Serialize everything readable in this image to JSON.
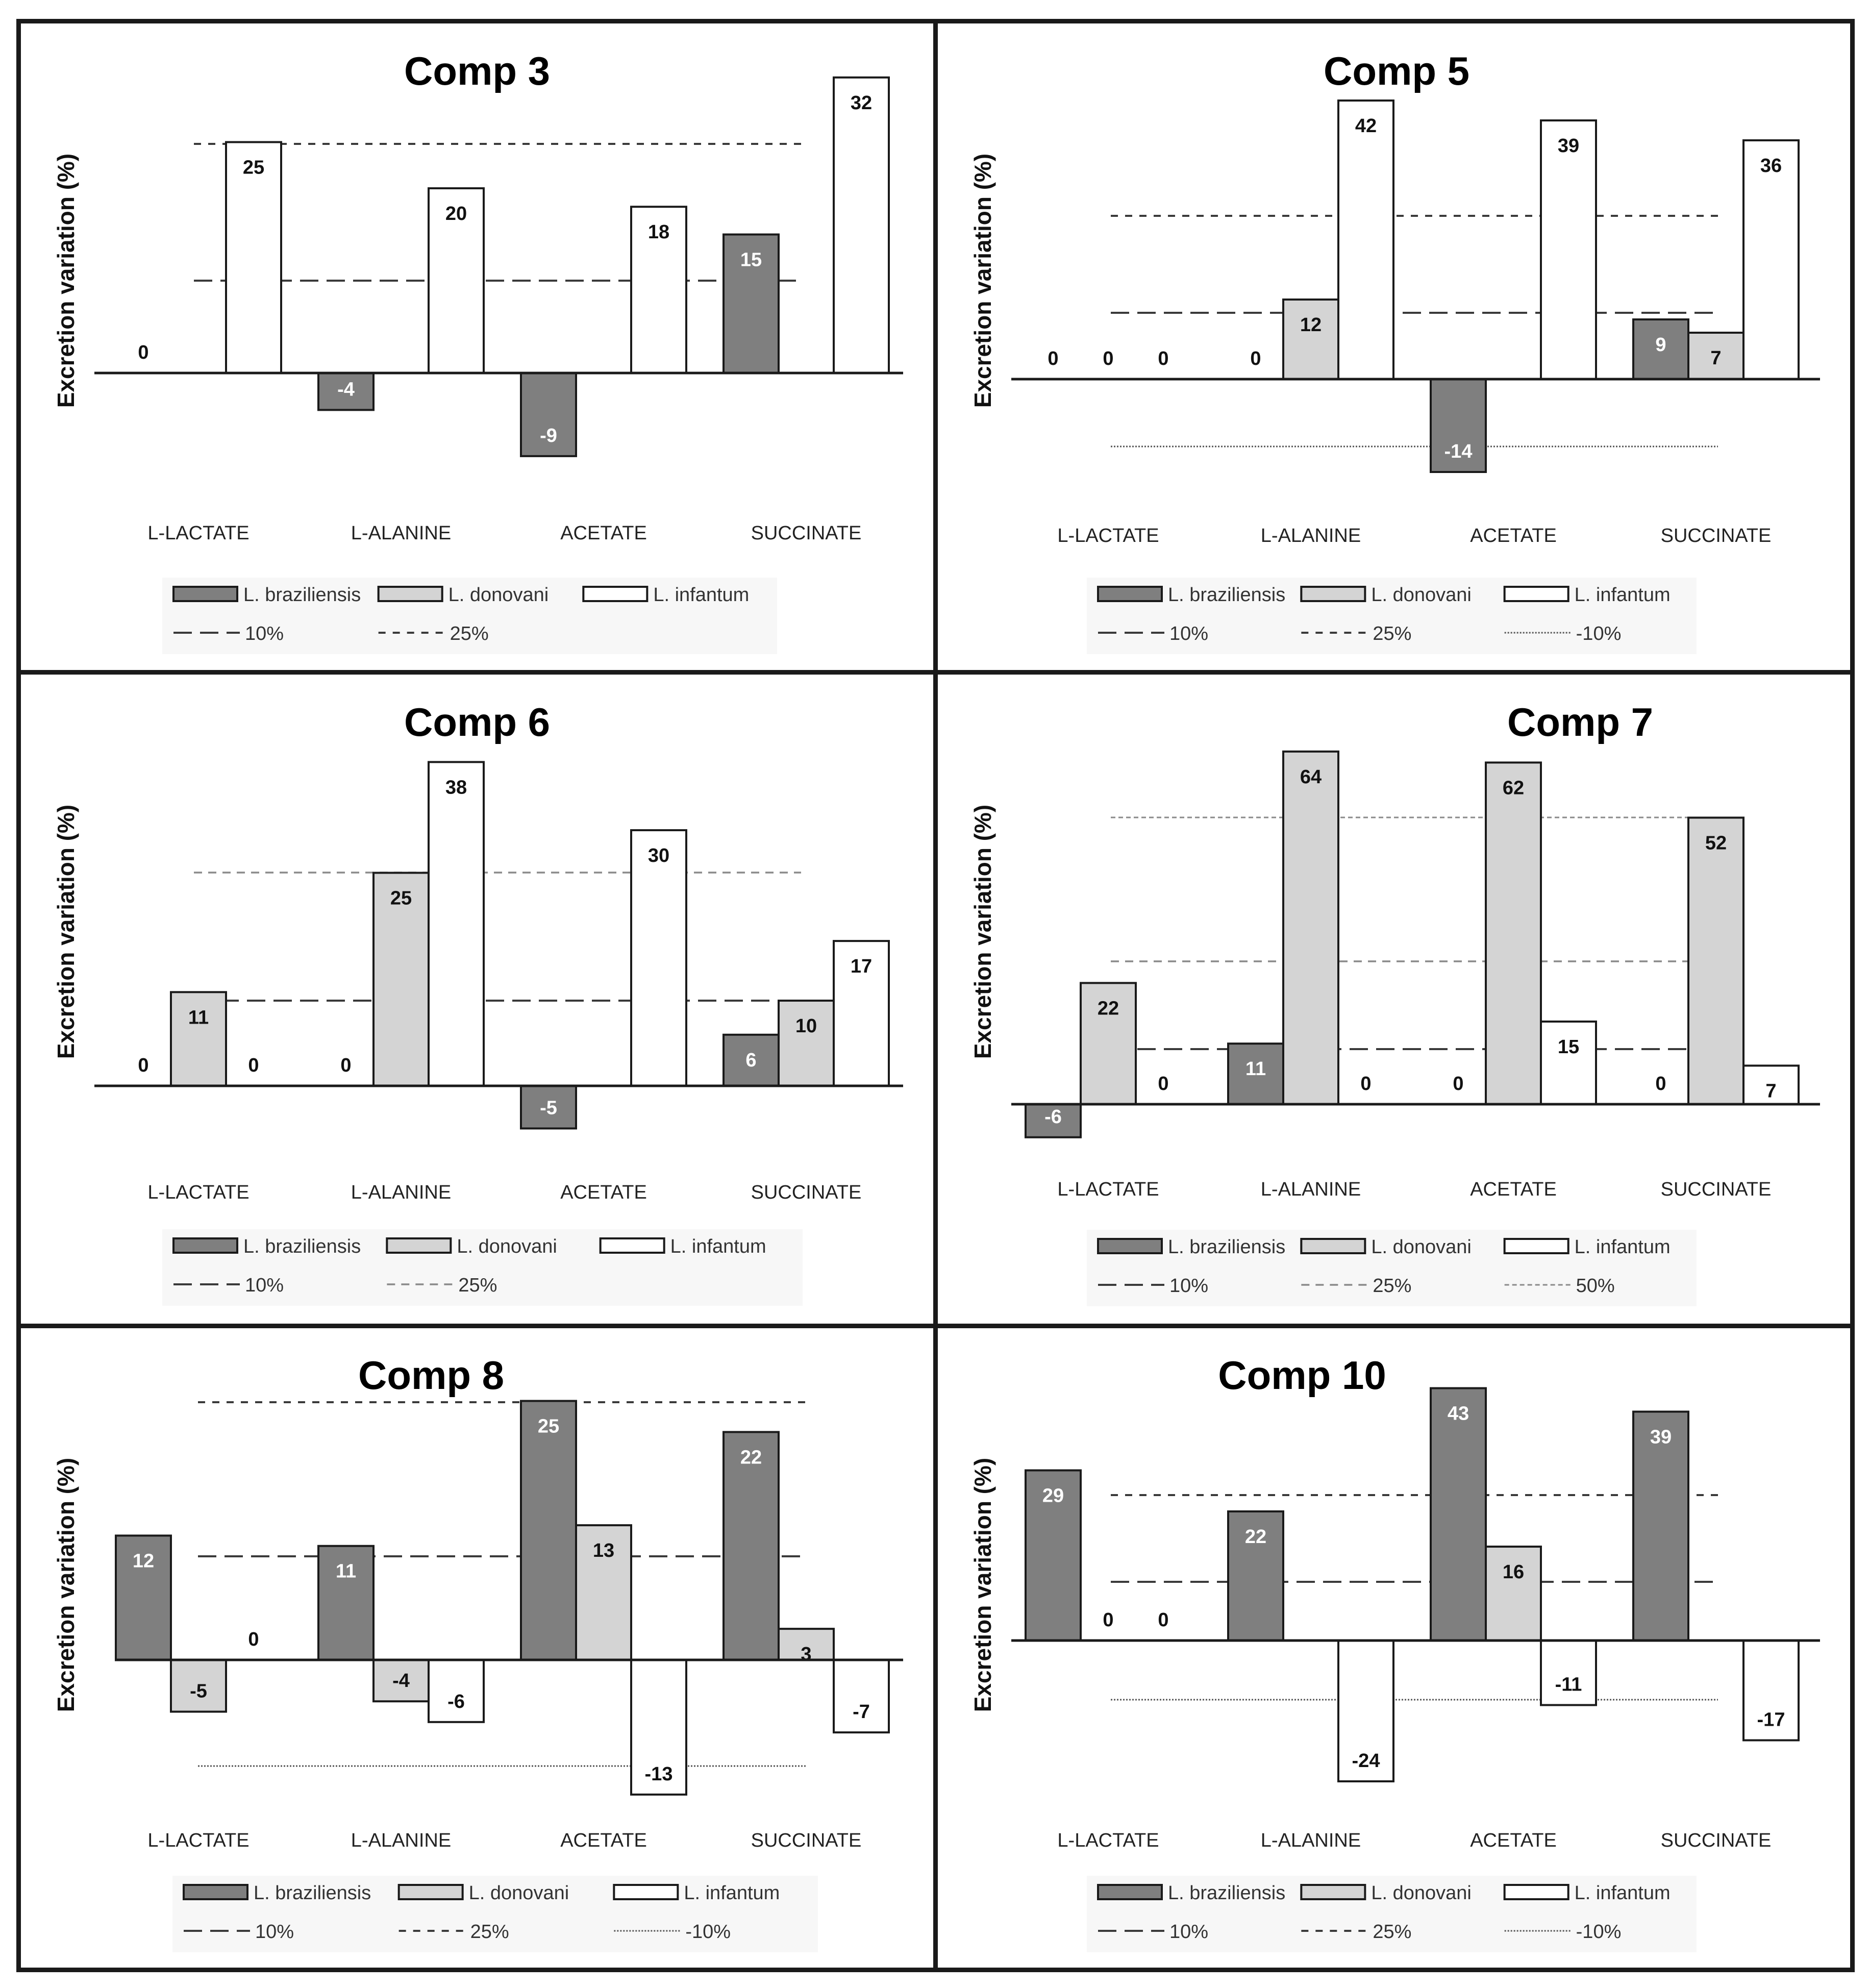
{
  "chart_data": [
    {
      "type": "bar",
      "title": "Comp 3",
      "ylabel": "Excretion variation (%)",
      "xlabel": "",
      "categories": [
        "L-LACTATE",
        "L-ALANINE",
        "ACETATE",
        "SUCCINATE"
      ],
      "series": [
        {
          "name": "L. braziliensis",
          "values": [
            0,
            -4,
            -9,
            15
          ]
        },
        {
          "name": "L. donovani",
          "values": [
            null,
            null,
            null,
            null
          ]
        },
        {
          "name": "L. infantum",
          "values": [
            25,
            20,
            18,
            32
          ]
        }
      ],
      "reference_lines": [
        {
          "label": "10%",
          "value": 10,
          "style": "long-dash"
        },
        {
          "label": "25%",
          "value": 25,
          "style": "short-dash"
        }
      ],
      "ylim": [
        -12,
        35
      ]
    },
    {
      "type": "bar",
      "title": "Comp 5",
      "ylabel": "Excretion variation (%)",
      "xlabel": "",
      "categories": [
        "L-LACTATE",
        "L-ALANINE",
        "ACETATE",
        "SUCCINATE"
      ],
      "series": [
        {
          "name": "L. braziliensis",
          "values": [
            0,
            0,
            -14,
            9
          ]
        },
        {
          "name": "L. donovani",
          "values": [
            0,
            12,
            null,
            7
          ]
        },
        {
          "name": "L. infantum",
          "values": [
            0,
            42,
            39,
            36
          ]
        }
      ],
      "reference_lines": [
        {
          "label": "10%",
          "value": 10,
          "style": "long-dash"
        },
        {
          "label": "25%",
          "value": 25,
          "style": "short-dash"
        },
        {
          "label": "-10%",
          "value": -10,
          "style": "dotted"
        }
      ],
      "ylim": [
        -17,
        42
      ]
    },
    {
      "type": "bar",
      "title": "Comp 6",
      "ylabel": "Excretion variation (%)",
      "xlabel": "",
      "categories": [
        "L-LACTATE",
        "L-ALANINE",
        "ACETATE",
        "SUCCINATE"
      ],
      "series": [
        {
          "name": "L. braziliensis",
          "values": [
            0,
            0,
            -5,
            6
          ]
        },
        {
          "name": "L. donovani",
          "values": [
            11,
            25,
            null,
            10
          ]
        },
        {
          "name": "L. infantum",
          "values": [
            0,
            38,
            30,
            17
          ]
        }
      ],
      "reference_lines": [
        {
          "label": "10%",
          "value": 10,
          "style": "long-dash"
        },
        {
          "label": "25%",
          "value": 25,
          "style": "grey-dash"
        }
      ],
      "ylim": [
        -8,
        40
      ]
    },
    {
      "type": "bar",
      "title": "Comp 7",
      "ylabel": "Excretion variation (%)",
      "xlabel": "",
      "categories": [
        "L-LACTATE",
        "L-ALANINE",
        "ACETATE",
        "SUCCINATE"
      ],
      "series": [
        {
          "name": "L. braziliensis",
          "values": [
            -6,
            11,
            0,
            0
          ]
        },
        {
          "name": "L. donovani",
          "values": [
            22,
            64,
            62,
            52
          ]
        },
        {
          "name": "L. infantum",
          "values": [
            0,
            0,
            15,
            7
          ]
        }
      ],
      "reference_lines": [
        {
          "label": "10%",
          "value": 10,
          "style": "long-dash"
        },
        {
          "label": "25%",
          "value": 25,
          "style": "grey-dash"
        },
        {
          "label": "50%",
          "value": 50,
          "style": "grey-fine"
        }
      ],
      "ylim": [
        -8,
        66
      ]
    },
    {
      "type": "bar",
      "title": "Comp 8",
      "ylabel": "Excretion variation (%)",
      "xlabel": "",
      "categories": [
        "L-LACTATE",
        "L-ALANINE",
        "ACETATE",
        "SUCCINATE"
      ],
      "series": [
        {
          "name": "L. braziliensis",
          "values": [
            12,
            11,
            25,
            22
          ]
        },
        {
          "name": "L. donovani",
          "values": [
            -5,
            -4,
            13,
            3
          ]
        },
        {
          "name": "L. infantum",
          "values": [
            0,
            -6,
            -13,
            -7
          ]
        }
      ],
      "reference_lines": [
        {
          "label": "10%",
          "value": 10,
          "style": "long-dash"
        },
        {
          "label": "25%",
          "value": 25,
          "style": "short-dash"
        },
        {
          "label": "-10%",
          "value": -10,
          "style": "dotted"
        }
      ],
      "ylim": [
        -15,
        27
      ]
    },
    {
      "type": "bar",
      "title": "Comp 10",
      "ylabel": "Excretion variation (%)",
      "xlabel": "",
      "categories": [
        "L-LACTATE",
        "L-ALANINE",
        "ACETATE",
        "SUCCINATE"
      ],
      "series": [
        {
          "name": "L. braziliensis",
          "values": [
            29,
            22,
            43,
            39
          ]
        },
        {
          "name": "L. donovani",
          "values": [
            0,
            null,
            16,
            null
          ]
        },
        {
          "name": "L. infantum",
          "values": [
            0,
            -24,
            -11,
            -17
          ]
        }
      ],
      "reference_lines": [
        {
          "label": "10%",
          "value": 10,
          "style": "long-dash"
        },
        {
          "label": "25%",
          "value": 25,
          "style": "short-dash"
        },
        {
          "label": "-10%",
          "value": -10,
          "style": "dotted"
        }
      ],
      "ylim": [
        -27,
        45
      ]
    }
  ],
  "colors": {
    "L. braziliensis": "#7f7f7f",
    "L. donovani": "#d4d4d4",
    "L. infantum": "#ffffff",
    "line": "#3a3a3a",
    "grey_line": "#8a8a8a"
  }
}
